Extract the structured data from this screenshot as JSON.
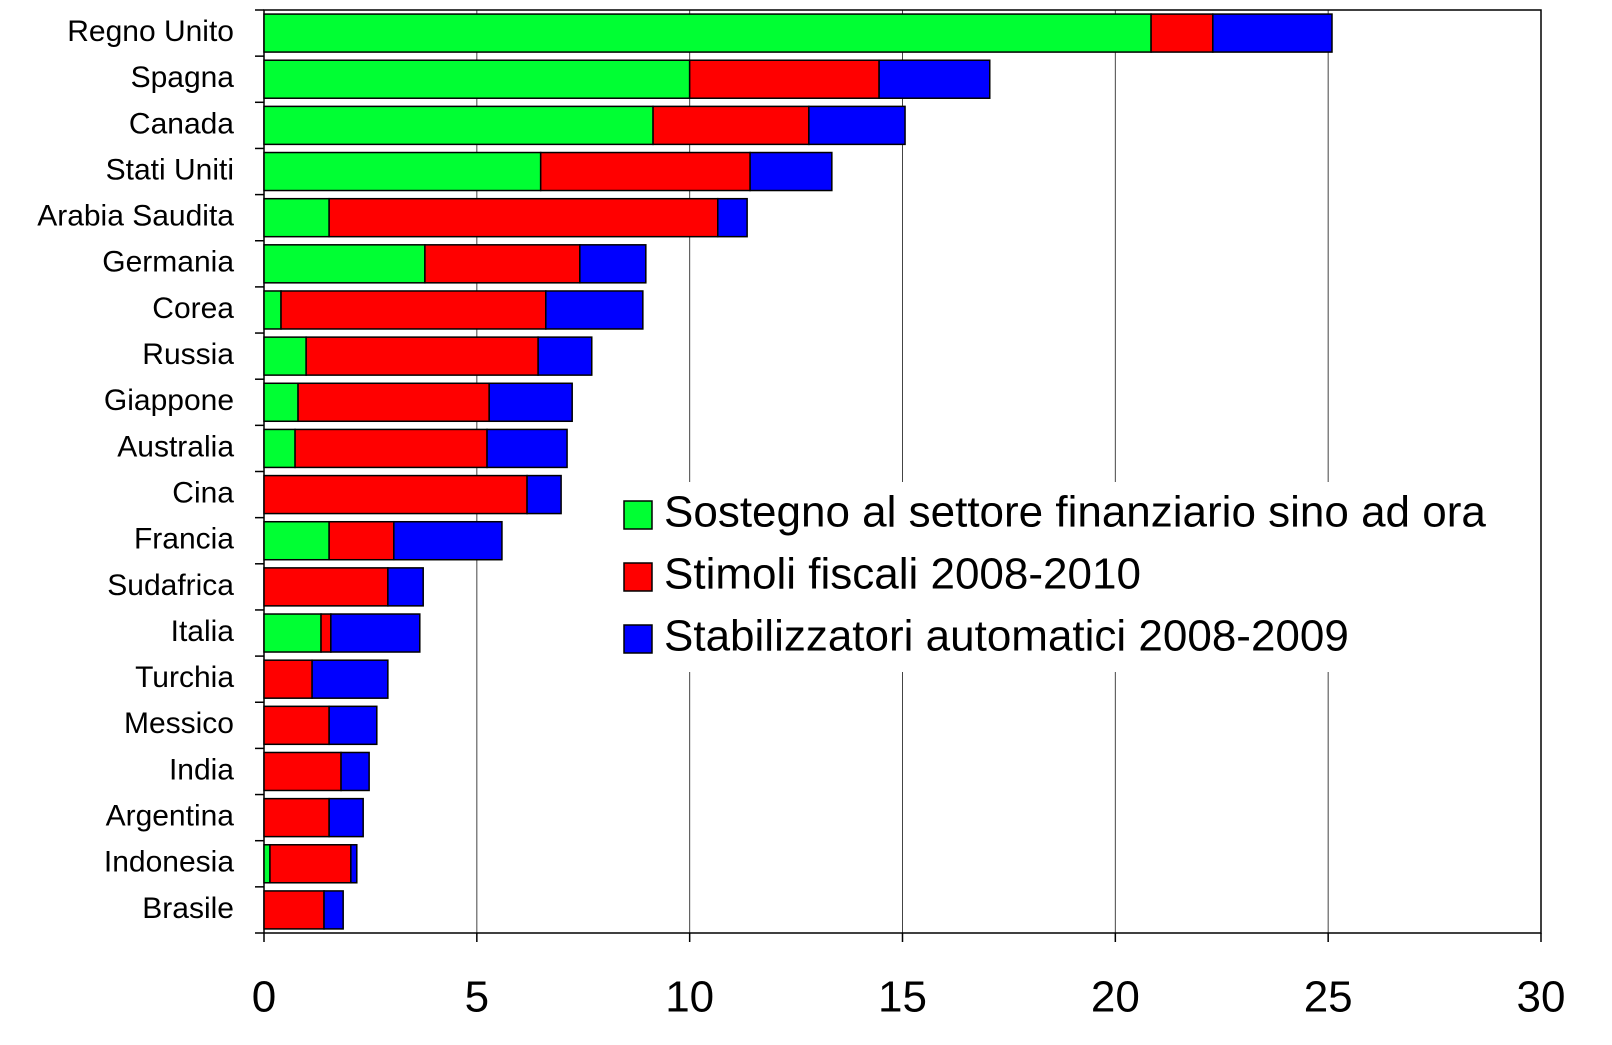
{
  "chart_data": {
    "type": "stacked-barh",
    "categories": [
      "Regno Unito",
      "Spagna",
      "Canada",
      "Stati Uniti",
      "Arabia Saudita",
      "Germania",
      "Corea",
      "Russia",
      "Giappone",
      "Australia",
      "Cina",
      "Francia",
      "Sudafrica",
      "Italia",
      "Turchia",
      "Messico",
      "India",
      "Argentina",
      "Indonesia",
      "Brasile"
    ],
    "series": [
      {
        "name": "Sostegno al settore finanziario sino ad ora",
        "color": "#00ff33",
        "values": [
          20.84,
          10.0,
          9.14,
          6.5,
          1.53,
          3.78,
          0.4,
          0.99,
          0.8,
          0.73,
          0,
          1.53,
          0,
          1.34,
          0,
          0,
          0,
          0,
          0.14,
          0
        ]
      },
      {
        "name": "Stimoli fiscali 2008-2010",
        "color": "#ff0000",
        "values": [
          1.45,
          4.45,
          3.66,
          4.92,
          9.13,
          3.64,
          6.22,
          5.45,
          4.49,
          4.51,
          6.18,
          1.52,
          2.91,
          0.23,
          1.13,
          1.53,
          1.81,
          1.53,
          1.9,
          1.41
        ]
      },
      {
        "name": "Stabilizzatori automatici 2008-2009",
        "color": "#0000ff",
        "values": [
          2.8,
          2.6,
          2.26,
          1.92,
          0.69,
          1.55,
          2.28,
          1.26,
          1.95,
          1.88,
          0.8,
          2.54,
          0.83,
          2.09,
          1.78,
          1.12,
          0.66,
          0.8,
          0.14,
          0.45
        ]
      }
    ],
    "xlim": [
      0,
      30
    ],
    "xticks": [
      0,
      5,
      10,
      15,
      20,
      25,
      30
    ],
    "grid": true
  }
}
